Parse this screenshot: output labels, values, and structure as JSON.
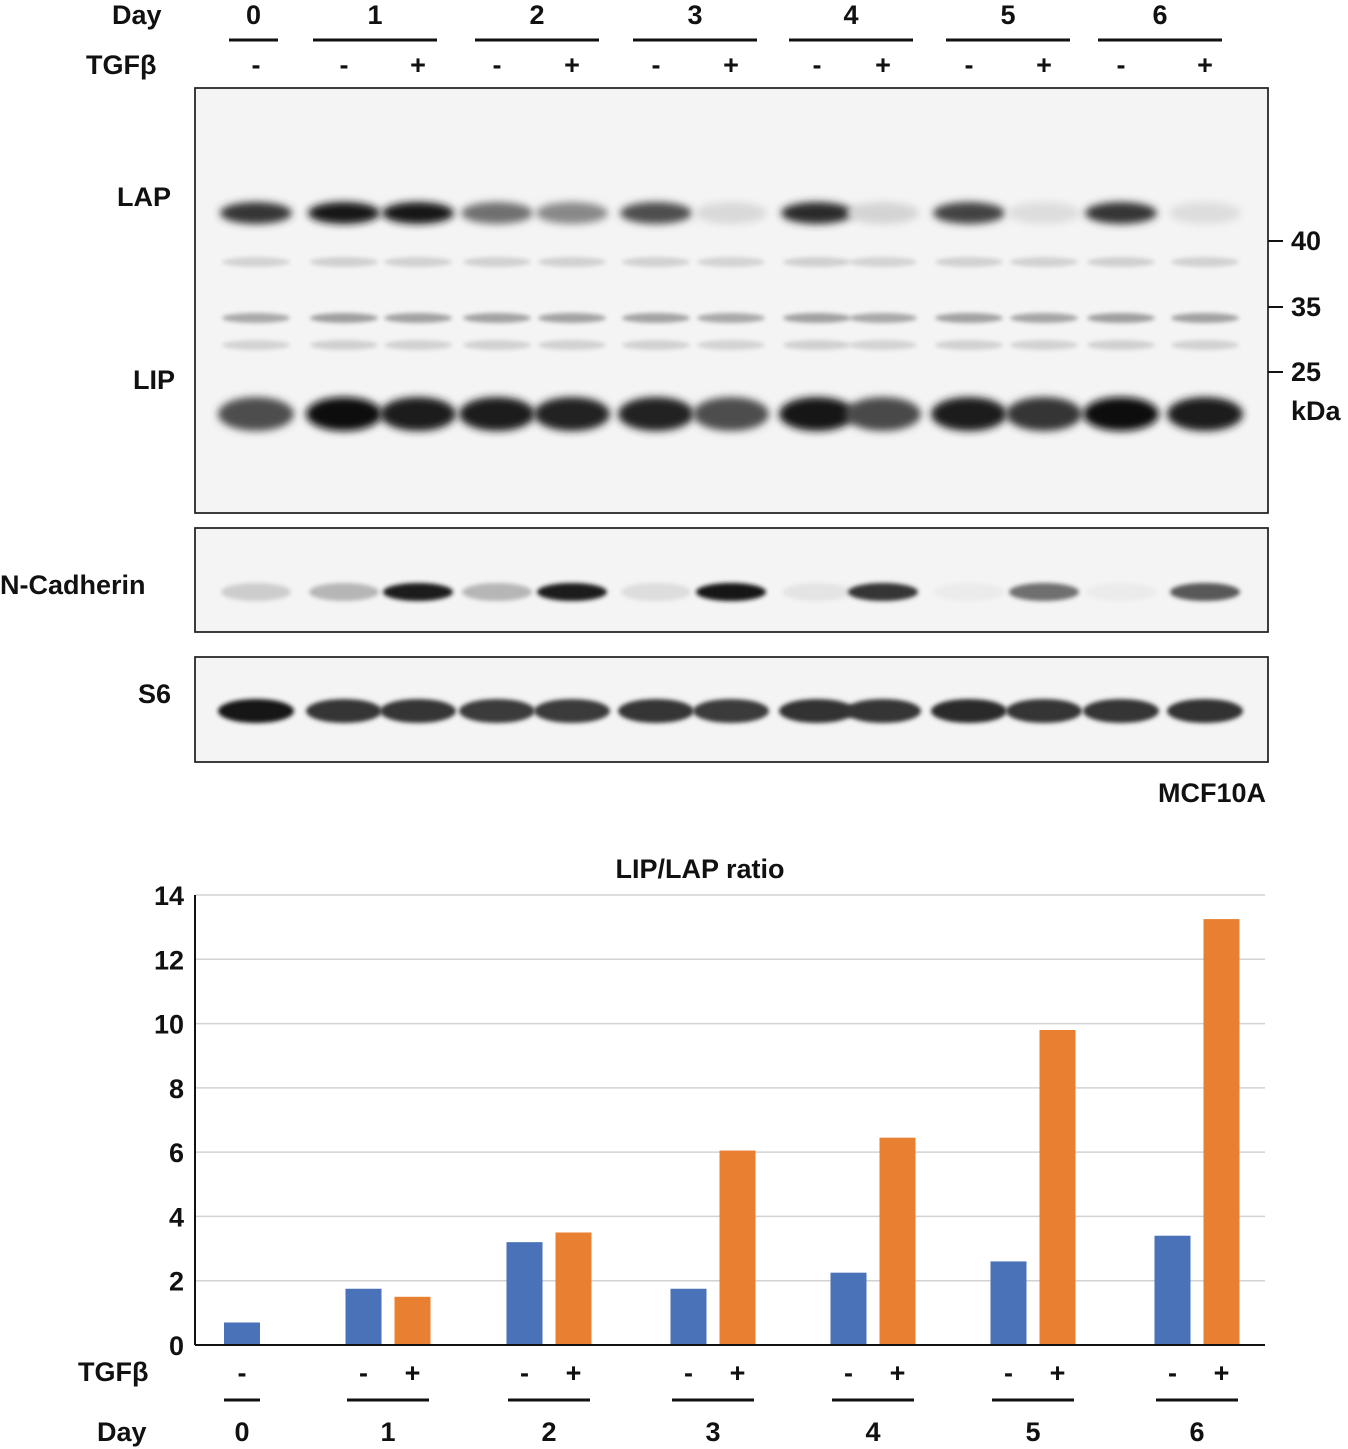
{
  "blot": {
    "header": {
      "day_label": "Day",
      "tgf_label": "TGFβ",
      "days": [
        "0",
        "1",
        "2",
        "3",
        "4",
        "5",
        "6"
      ],
      "lanes": [
        "-",
        "-",
        "+",
        "-",
        "+",
        "-",
        "+",
        "-",
        "+",
        "-",
        "+",
        "-",
        "+"
      ]
    },
    "panels": {
      "main_left_labels": [
        "LAP",
        "LIP"
      ],
      "ncad_label": "N-Cadherin",
      "s6_label": "S6"
    },
    "markers": {
      "values": [
        "40",
        "35",
        "25"
      ],
      "unit": "kDa"
    },
    "cell_line": "MCF10A",
    "band_intensity_note": "",
    "intensities": {
      "LAP": [
        0.8,
        0.95,
        0.95,
        0.55,
        0.45,
        0.7,
        0.1,
        0.85,
        0.12,
        0.75,
        0.08,
        0.8,
        0.08
      ],
      "LIP": [
        0.7,
        0.98,
        0.92,
        0.9,
        0.88,
        0.88,
        0.7,
        0.95,
        0.72,
        0.92,
        0.8,
        0.98,
        0.92
      ],
      "NCAD": [
        0.15,
        0.25,
        0.9,
        0.25,
        0.9,
        0.08,
        0.95,
        0.05,
        0.8,
        0.02,
        0.55,
        0.02,
        0.65
      ],
      "S6": [
        0.95,
        0.8,
        0.8,
        0.78,
        0.78,
        0.8,
        0.78,
        0.82,
        0.8,
        0.85,
        0.8,
        0.8,
        0.82
      ]
    }
  },
  "chart_data": {
    "type": "bar",
    "title": "LIP/LAP ratio",
    "xlabel": "",
    "ylabel": "",
    "ylim": [
      0,
      14
    ],
    "yticks": [
      "0",
      "2",
      "4",
      "6",
      "8",
      "10",
      "12",
      "14"
    ],
    "grid": true,
    "tgf_label": "TGFβ",
    "day_label": "Day",
    "categories": [
      "0",
      "1",
      "2",
      "3",
      "4",
      "5",
      "6"
    ],
    "series": [
      {
        "tgf": "-",
        "color": "#4a72b9",
        "values": [
          0.7,
          1.75,
          3.2,
          1.75,
          2.25,
          2.6,
          3.4
        ]
      },
      {
        "tgf": "+",
        "color": "#e97f31",
        "values": [
          null,
          1.5,
          3.5,
          6.05,
          6.45,
          9.8,
          13.25
        ]
      }
    ]
  }
}
